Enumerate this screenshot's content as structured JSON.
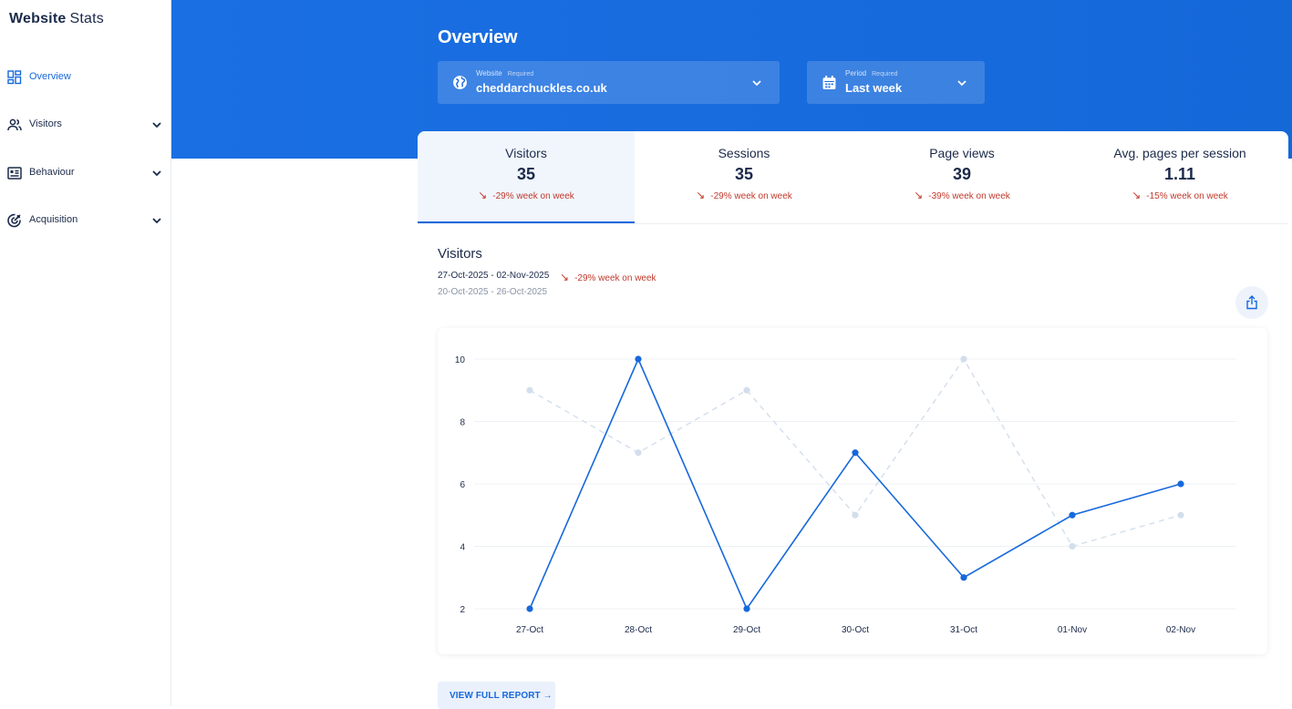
{
  "brand": {
    "part1": "Website",
    "part2": "Stats"
  },
  "sidebar": {
    "items": [
      {
        "label": "Overview",
        "icon": "dashboard-icon",
        "active": true
      },
      {
        "label": "Visitors",
        "icon": "people-icon",
        "expandable": true
      },
      {
        "label": "Behaviour",
        "icon": "list-card-icon",
        "expandable": true
      },
      {
        "label": "Acquisition",
        "icon": "target-icon",
        "expandable": true
      }
    ]
  },
  "header": {
    "title": "Overview",
    "website": {
      "label": "Website",
      "required": "Required",
      "value": "cheddarchuckles.co.uk"
    },
    "period": {
      "label": "Period",
      "required": "Required",
      "value": "Last week"
    }
  },
  "tabs": [
    {
      "label": "Visitors",
      "value": "35",
      "change": "-29% week on week"
    },
    {
      "label": "Sessions",
      "value": "35",
      "change": "-29% week on week"
    },
    {
      "label": "Page views",
      "value": "39",
      "change": "-39% week on week"
    },
    {
      "label": "Avg. pages per session",
      "value": "1.11",
      "change": "-15% week on week"
    }
  ],
  "section": {
    "title": "Visitors",
    "current_range": "27-Oct-2025 - 02-Nov-2025",
    "previous_range": "20-Oct-2025 - 26-Oct-2025",
    "change": "-29% week on week"
  },
  "chart_data": {
    "type": "line",
    "categories": [
      "27-Oct",
      "28-Oct",
      "29-Oct",
      "30-Oct",
      "31-Oct",
      "01-Nov",
      "02-Nov"
    ],
    "series": [
      {
        "values": [
          2,
          10,
          2,
          7,
          3,
          5,
          6
        ],
        "color": "#1668dc",
        "style": "solid"
      },
      {
        "values": [
          9,
          7,
          9,
          5,
          10,
          4,
          5
        ],
        "color": "#d3deec",
        "style": "dashed"
      }
    ],
    "yticks": [
      "2",
      "4",
      "6",
      "8",
      "10"
    ],
    "ylim": [
      2,
      10
    ],
    "grid": true
  },
  "footer": {
    "report_button": "VIEW FULL REPORT"
  },
  "colors": {
    "accent": "#1668dc",
    "negative": "#c0392b"
  }
}
